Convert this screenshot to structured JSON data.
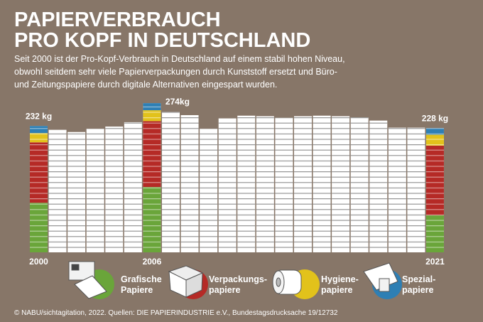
{
  "title_lines": [
    "PAPIERVERBRAUCH",
    "PRO KOPF IN DEUTSCHLAND"
  ],
  "subtitle_lines": [
    "Seit 2000 ist der Pro-Kopf-Verbrauch in Deutschland auf einem stabil hohen Niveau,",
    "obwohl seitdem sehr viele Papierverpackungen durch Kunststoff ersetzt und Büro-",
    "und Zeitungspapiere durch digitale Alternativen eingespart wurden."
  ],
  "source": "© NABU/sichtagitation, 2022. Quellen: DIE PAPIERINDUSTRIE e.V., Bundestagsdrucksache 19/12732",
  "chart_data": {
    "type": "bar",
    "categories": [
      "2000",
      null,
      null,
      null,
      null,
      null,
      "2006",
      null,
      null,
      null,
      null,
      null,
      null,
      null,
      null,
      null,
      null,
      null,
      null,
      null,
      null,
      "2021"
    ],
    "values": [
      232,
      225,
      221,
      227,
      231,
      239,
      274,
      258,
      252,
      227,
      246,
      251,
      250,
      247,
      250,
      251,
      250,
      248,
      242,
      229,
      229,
      228
    ],
    "value_labels": [
      "232 kg",
      null,
      null,
      null,
      null,
      null,
      "274kg",
      null,
      null,
      null,
      null,
      null,
      null,
      null,
      null,
      null,
      null,
      null,
      null,
      null,
      null,
      "228 kg"
    ],
    "color": "#ffffff",
    "series": [
      {
        "name": "Grafische\nPapiere",
        "color": "#6aa53a",
        "values": [
          91,
          null,
          null,
          null,
          null,
          null,
          120,
          null,
          null,
          null,
          null,
          null,
          null,
          null,
          null,
          null,
          null,
          null,
          null,
          null,
          null,
          68
        ]
      },
      {
        "name": "Verpackungs-\npapiere",
        "color": "#b52a26",
        "values": [
          111,
          null,
          null,
          null,
          null,
          null,
          121,
          null,
          null,
          null,
          null,
          null,
          null,
          null,
          null,
          null,
          null,
          null,
          null,
          null,
          null,
          128
        ]
      },
      {
        "name": "Hygiene-\npapiere",
        "color": "#e2c21b",
        "values": [
          17,
          null,
          null,
          null,
          null,
          null,
          20,
          null,
          null,
          null,
          null,
          null,
          null,
          null,
          null,
          null,
          null,
          null,
          null,
          null,
          null,
          20
        ]
      },
      {
        "name": "Spezial-\npapiere",
        "color": "#2e7fb4",
        "values": [
          13,
          null,
          null,
          null,
          null,
          null,
          13,
          null,
          null,
          null,
          null,
          null,
          null,
          null,
          null,
          null,
          null,
          null,
          null,
          null,
          null,
          12
        ]
      }
    ]
  }
}
